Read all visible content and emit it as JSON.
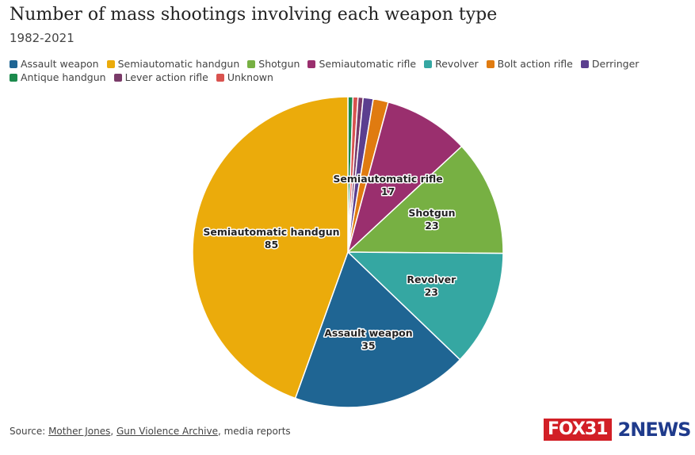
{
  "chart_data": {
    "type": "pie",
    "title": "Number of mass shootings involving each weapon type",
    "subtitle": "1982-2021",
    "slices": [
      {
        "name": "Antique handgun",
        "value": 1,
        "color": "#1b8a4c"
      },
      {
        "name": "Unknown",
        "value": 1,
        "color": "#d9534f"
      },
      {
        "name": "Lever action rifle",
        "value": 1,
        "color": "#7a3b69"
      },
      {
        "name": "Derringer",
        "value": 2,
        "color": "#5b3f8f"
      },
      {
        "name": "Bolt action rifle",
        "value": 3,
        "color": "#e07b10"
      },
      {
        "name": "Semiautomatic rifle",
        "value": 17,
        "color": "#9a2f6e"
      },
      {
        "name": "Shotgun",
        "value": 23,
        "color": "#77b043"
      },
      {
        "name": "Revolver",
        "value": 23,
        "color": "#35a7a2"
      },
      {
        "name": "Assault weapon",
        "value": 35,
        "color": "#1f6593"
      },
      {
        "name": "Semiautomatic handgun",
        "value": 85,
        "color": "#ebab0b"
      }
    ],
    "labeled_slices": [
      "Semiautomatic rifle",
      "Shotgun",
      "Revolver",
      "Assault weapon",
      "Semiautomatic handgun"
    ]
  },
  "legend": [
    {
      "label": "Assault weapon",
      "color": "#1f6593"
    },
    {
      "label": "Semiautomatic handgun",
      "color": "#ebab0b"
    },
    {
      "label": "Shotgun",
      "color": "#77b043"
    },
    {
      "label": "Semiautomatic rifle",
      "color": "#9a2f6e"
    },
    {
      "label": "Revolver",
      "color": "#35a7a2"
    },
    {
      "label": "Bolt action rifle",
      "color": "#e07b10"
    },
    {
      "label": "Derringer",
      "color": "#5b3f8f"
    },
    {
      "label": "Antique handgun",
      "color": "#1b8a4c"
    },
    {
      "label": "Lever action rifle",
      "color": "#7a3b69"
    },
    {
      "label": "Unknown",
      "color": "#d9534f"
    }
  ],
  "source": {
    "prefix": "Source: ",
    "link1": "Mother Jones",
    "sep": ", ",
    "link2": "Gun Violence Archive",
    "suffix": ", media reports"
  },
  "logos": {
    "fox": "FOX31",
    "news": "2NEWS"
  }
}
